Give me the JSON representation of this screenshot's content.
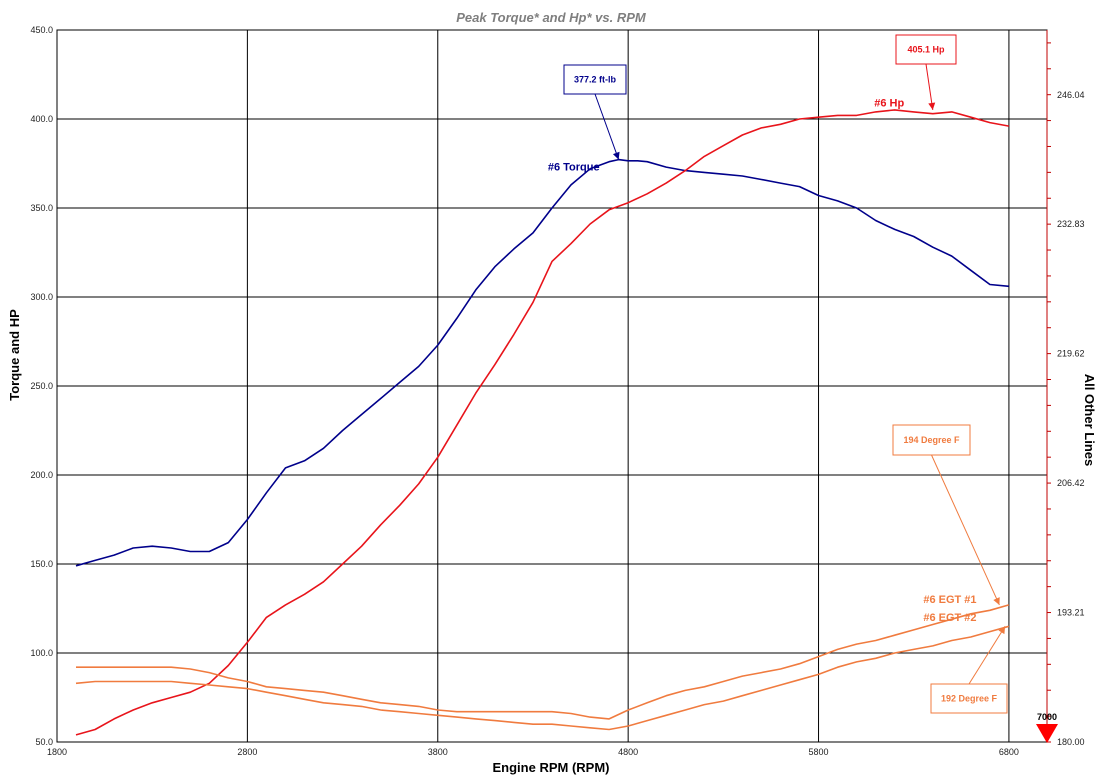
{
  "chart_data": {
    "type": "line",
    "title": "Peak Torque* and Hp* vs. RPM",
    "xlabel": "Engine RPM (RPM)",
    "ylabel": "Torque and HP",
    "y2label": "All Other Lines",
    "xlim": [
      1800,
      7000
    ],
    "ylim": [
      50,
      450
    ],
    "y2lim": [
      180,
      252.65
    ],
    "grid": true,
    "x_ticks": [
      "1800",
      "2800",
      "3800",
      "4800",
      "5800",
      "6800"
    ],
    "x_tick_values": [
      1800,
      2800,
      3800,
      4800,
      5800,
      6800
    ],
    "y_ticks": [
      "50.0",
      "100.0",
      "150.0",
      "200.0",
      "250.0",
      "300.0",
      "350.0",
      "400.0",
      "450.0"
    ],
    "y_tick_values": [
      50,
      100,
      150,
      200,
      250,
      300,
      350,
      400,
      450
    ],
    "y2_ticks": [
      "180.00",
      "193.21",
      "206.42",
      "219.62",
      "232.83",
      "246.04"
    ],
    "y2_tick_values": [
      180.0,
      193.21,
      206.42,
      219.62,
      232.83,
      246.04
    ],
    "end_marker": {
      "label": "7000",
      "x": 7000
    },
    "colors": {
      "torque": "#00008b",
      "hp": "#e8141b",
      "egt": "#f07b3f",
      "grid": "#000000",
      "right_axis": "#c00000"
    },
    "series": [
      {
        "name": "#6 Torque",
        "axis": "left",
        "color": "#00008b",
        "x": [
          1900,
          2000,
          2100,
          2200,
          2300,
          2400,
          2500,
          2600,
          2700,
          2800,
          2900,
          3000,
          3100,
          3200,
          3300,
          3400,
          3500,
          3600,
          3700,
          3800,
          3900,
          4000,
          4100,
          4200,
          4300,
          4400,
          4500,
          4600,
          4700,
          4750,
          4800,
          4850,
          4900,
          5000,
          5100,
          5200,
          5300,
          5400,
          5500,
          5600,
          5700,
          5800,
          5900,
          6000,
          6100,
          6200,
          6300,
          6400,
          6500,
          6600,
          6700,
          6800
        ],
        "values": [
          149,
          152,
          155,
          159,
          160,
          159,
          157,
          157,
          162,
          175,
          190,
          204,
          208,
          215,
          225,
          234,
          243,
          252,
          261,
          273,
          288,
          304,
          317,
          327,
          336,
          350,
          363,
          372,
          376,
          377.2,
          376.5,
          376.5,
          376,
          373,
          371,
          370,
          369,
          368,
          366,
          364,
          362,
          357,
          354,
          350,
          343,
          338,
          334,
          328,
          323,
          315,
          307,
          306
        ]
      },
      {
        "name": "#6 Hp",
        "axis": "left",
        "color": "#e8141b",
        "x": [
          1900,
          2000,
          2100,
          2200,
          2300,
          2400,
          2500,
          2600,
          2700,
          2800,
          2900,
          3000,
          3100,
          3200,
          3300,
          3400,
          3500,
          3600,
          3700,
          3800,
          3900,
          4000,
          4100,
          4200,
          4300,
          4400,
          4500,
          4600,
          4700,
          4800,
          4900,
          5000,
          5100,
          5200,
          5300,
          5400,
          5500,
          5600,
          5700,
          5800,
          5900,
          6000,
          6100,
          6200,
          6300,
          6400,
          6500,
          6600,
          6700,
          6800
        ],
        "values": [
          54,
          57,
          63,
          68,
          72,
          75,
          78,
          83,
          93,
          106,
          120,
          127,
          133,
          140,
          150,
          160,
          172,
          183,
          195,
          210,
          228,
          246,
          262,
          279,
          297,
          320,
          330,
          341,
          349,
          353,
          358,
          364,
          371,
          379,
          385,
          391,
          395,
          397,
          400,
          401,
          402,
          402,
          404,
          405.1,
          404,
          403,
          404,
          401,
          398,
          396
        ]
      },
      {
        "name": "#6 EGT #1",
        "axis": "left",
        "color": "#f07b3f",
        "x": [
          1900,
          2000,
          2100,
          2200,
          2300,
          2400,
          2500,
          2600,
          2700,
          2800,
          2900,
          3000,
          3100,
          3200,
          3300,
          3400,
          3500,
          3600,
          3700,
          3800,
          3900,
          4000,
          4100,
          4200,
          4300,
          4400,
          4500,
          4600,
          4700,
          4800,
          4900,
          5000,
          5100,
          5200,
          5300,
          5400,
          5500,
          5600,
          5700,
          5800,
          5900,
          6000,
          6100,
          6200,
          6300,
          6400,
          6500,
          6600,
          6700,
          6800
        ],
        "values": [
          92,
          92,
          92,
          92,
          92,
          92,
          91,
          89,
          86,
          84,
          81,
          80,
          79,
          78,
          76,
          74,
          72,
          71,
          70,
          68,
          67,
          67,
          67,
          67,
          67,
          67,
          66,
          64,
          63,
          68,
          72,
          76,
          79,
          81,
          84,
          87,
          89,
          91,
          94,
          98,
          102,
          105,
          107,
          110,
          113,
          116,
          119,
          122,
          124,
          127
        ]
      },
      {
        "name": "#6 EGT #2",
        "axis": "left",
        "color": "#f07b3f",
        "x": [
          1900,
          2000,
          2100,
          2200,
          2300,
          2400,
          2500,
          2600,
          2700,
          2800,
          2900,
          3000,
          3100,
          3200,
          3300,
          3400,
          3500,
          3600,
          3700,
          3800,
          3900,
          4000,
          4100,
          4200,
          4300,
          4400,
          4500,
          4600,
          4700,
          4800,
          4900,
          5000,
          5100,
          5200,
          5300,
          5400,
          5500,
          5600,
          5700,
          5800,
          5900,
          6000,
          6100,
          6200,
          6300,
          6400,
          6500,
          6600,
          6700,
          6800
        ],
        "values": [
          83,
          84,
          84,
          84,
          84,
          84,
          83,
          82,
          81,
          80,
          78,
          76,
          74,
          72,
          71,
          70,
          68,
          67,
          66,
          65,
          64,
          63,
          62,
          61,
          60,
          60,
          59,
          58,
          57,
          59,
          62,
          65,
          68,
          71,
          73,
          76,
          79,
          82,
          85,
          88,
          92,
          95,
          97,
          100,
          102,
          104,
          107,
          109,
          112,
          115
        ]
      }
    ],
    "callouts": [
      {
        "text": "377.2 ft-lb",
        "color": "#00008b",
        "x": 4750,
        "y": 377.2,
        "series": 0
      },
      {
        "text": "405.1 Hp",
        "color": "#e8141b",
        "x": 6400,
        "y": 405.1,
        "series": 1
      },
      {
        "text": "194 Degree F",
        "color": "#f07b3f",
        "x": 6750,
        "y": 127,
        "series": 2
      },
      {
        "text": "192 Degree F",
        "color": "#f07b3f",
        "x": 6780,
        "y": 115,
        "series": 3
      }
    ]
  }
}
